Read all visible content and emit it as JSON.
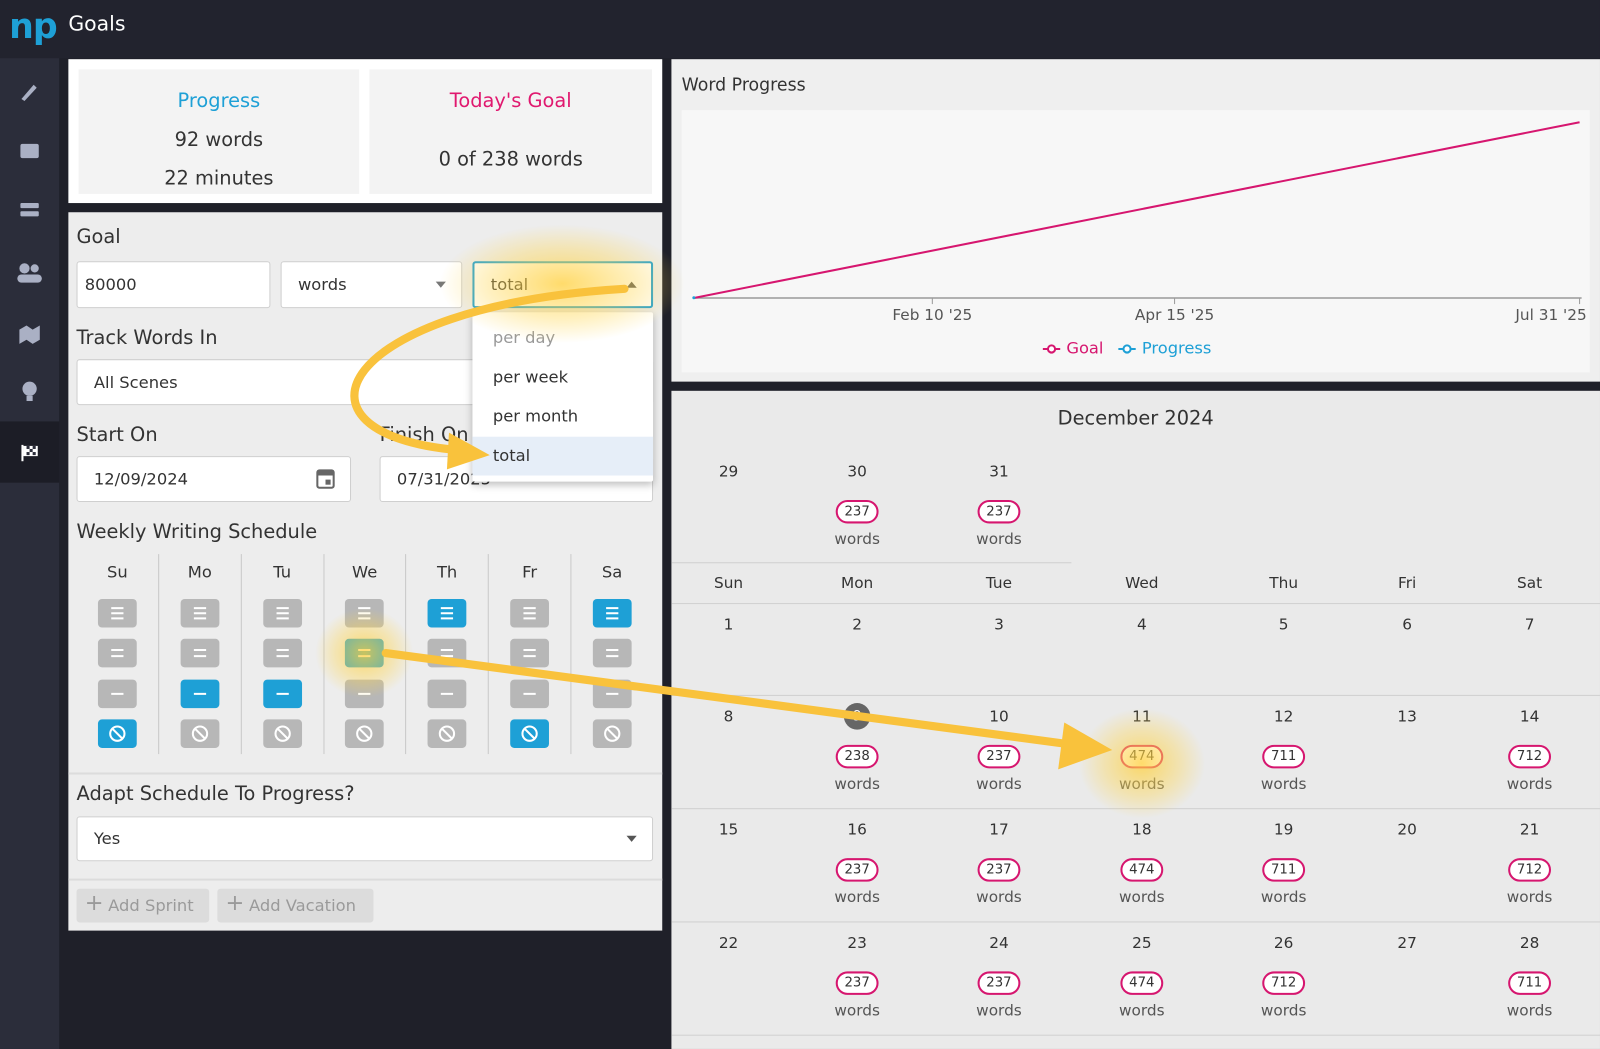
{
  "app": {
    "logo": "np",
    "title": "Goals"
  },
  "stats": {
    "progress": {
      "title": "Progress",
      "words": "92 words",
      "minutes": "22 minutes"
    },
    "today": {
      "title": "Today's Goal",
      "status": "0 of 238 words"
    }
  },
  "goal": {
    "label": "Goal",
    "amount": "80000",
    "unit": "words",
    "period": "total",
    "period_options": [
      "per day",
      "per week",
      "per month",
      "total"
    ]
  },
  "track": {
    "label": "Track Words In",
    "value": "All Scenes"
  },
  "start": {
    "label": "Start On",
    "value": "12/09/2024"
  },
  "finish": {
    "label": "Finish On",
    "value": "07/31/2025"
  },
  "schedule": {
    "label": "Weekly Writing Schedule",
    "days": [
      {
        "name": "Su",
        "level": 3
      },
      {
        "name": "Mo",
        "level": 2
      },
      {
        "name": "Tu",
        "level": 2
      },
      {
        "name": "We",
        "level": 1
      },
      {
        "name": "Th",
        "level": 0
      },
      {
        "name": "Fr",
        "level": 3
      },
      {
        "name": "Sa",
        "level": 0
      }
    ]
  },
  "adapt": {
    "label": "Adapt Schedule To Progress?",
    "value": "Yes"
  },
  "actions": [
    "Add Sprint",
    "Add Vacation"
  ],
  "chart_data": {
    "type": "line",
    "title": "Word Progress",
    "xlim": [
      0,
      234
    ],
    "ylim": [
      0,
      85000
    ],
    "xticks": [
      {
        "value": 63,
        "label": "Feb 10 '25"
      },
      {
        "value": 127,
        "label": "Apr 15 '25"
      },
      {
        "value": 234,
        "label": "Jul 31 '25"
      }
    ],
    "series": [
      {
        "name": "Goal",
        "color": "#d6166f",
        "x": [
          0,
          234
        ],
        "values": [
          0,
          80000
        ]
      },
      {
        "name": "Progress",
        "color": "#1ea0d6",
        "x": [
          0
        ],
        "values": [
          92
        ]
      }
    ],
    "legend": "bottom"
  },
  "calendar": {
    "title": "December 2024",
    "lead": [
      {
        "day": "29"
      },
      {
        "day": "30",
        "goal": "237",
        "unit": "words"
      },
      {
        "day": "31",
        "goal": "237",
        "unit": "words"
      }
    ],
    "weekdays": [
      "Sun",
      "Mon",
      "Tue",
      "Wed",
      "Thu",
      "Fri",
      "Sat"
    ],
    "weeks": [
      [
        {
          "day": "1"
        },
        {
          "day": "2"
        },
        {
          "day": "3"
        },
        {
          "day": "4"
        },
        {
          "day": "5"
        },
        {
          "day": "6"
        },
        {
          "day": "7"
        }
      ],
      [
        {
          "day": "8"
        },
        {
          "day": "9",
          "goal": "238",
          "unit": "words",
          "today": true
        },
        {
          "day": "10",
          "goal": "237",
          "unit": "words"
        },
        {
          "day": "11",
          "goal": "474",
          "unit": "words"
        },
        {
          "day": "12",
          "goal": "711",
          "unit": "words"
        },
        {
          "day": "13"
        },
        {
          "day": "14",
          "goal": "712",
          "unit": "words"
        }
      ],
      [
        {
          "day": "15"
        },
        {
          "day": "16",
          "goal": "237",
          "unit": "words"
        },
        {
          "day": "17",
          "goal": "237",
          "unit": "words"
        },
        {
          "day": "18",
          "goal": "474",
          "unit": "words"
        },
        {
          "day": "19",
          "goal": "711",
          "unit": "words"
        },
        {
          "day": "20"
        },
        {
          "day": "21",
          "goal": "712",
          "unit": "words"
        }
      ],
      [
        {
          "day": "22"
        },
        {
          "day": "23",
          "goal": "237",
          "unit": "words"
        },
        {
          "day": "24",
          "goal": "237",
          "unit": "words"
        },
        {
          "day": "25",
          "goal": "474",
          "unit": "words"
        },
        {
          "day": "26",
          "goal": "712",
          "unit": "words"
        },
        {
          "day": "27"
        },
        {
          "day": "28",
          "goal": "711",
          "unit": "words"
        }
      ]
    ]
  }
}
